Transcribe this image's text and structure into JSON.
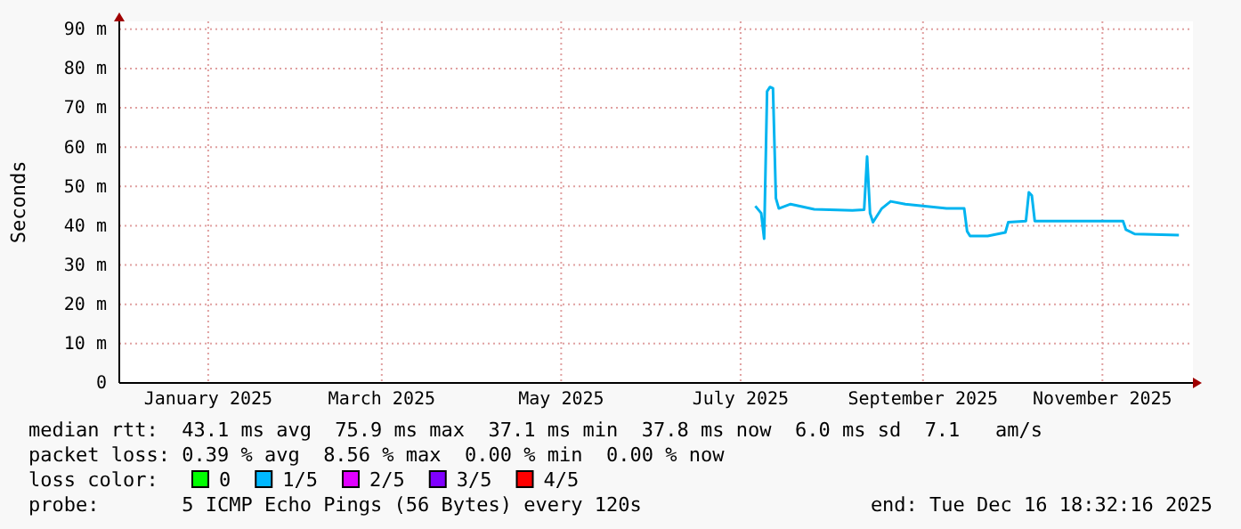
{
  "chart_data": {
    "type": "line",
    "ylabel": "Seconds",
    "xlim": [
      "2024-12-16T18:32",
      "2025-12-16T18:32"
    ],
    "xticks": [
      {
        "value": "2025-01-16",
        "label": "January 2025"
      },
      {
        "value": "2025-03-16",
        "label": "March 2025"
      },
      {
        "value": "2025-05-16",
        "label": "May 2025"
      },
      {
        "value": "2025-07-16",
        "label": "July 2025"
      },
      {
        "value": "2025-09-16",
        "label": "September 2025"
      },
      {
        "value": "2025-11-16",
        "label": "November 2025"
      }
    ],
    "ylim": [
      0,
      92
    ],
    "yticks": [
      0,
      {
        "value": 10,
        "label": "10 m"
      },
      {
        "value": 20,
        "label": "20 m"
      },
      {
        "value": 30,
        "label": "30 m"
      },
      {
        "value": 40,
        "label": "40 m"
      },
      {
        "value": 50,
        "label": "50 m"
      },
      {
        "value": 60,
        "label": "60 m"
      },
      {
        "value": 70,
        "label": "70 m"
      },
      {
        "value": 80,
        "label": "80 m"
      },
      {
        "value": 90,
        "label": "90 m"
      }
    ],
    "grid": true,
    "marker": "none",
    "line_style": "solid",
    "series": [
      {
        "color": "#00b4f0",
        "x": [
          "2025-07-21",
          "2025-07-23",
          "2025-07-24",
          "2025-07-25",
          "2025-07-26",
          "2025-07-27",
          "2025-07-28",
          "2025-07-29",
          "2025-08-02",
          "2025-08-10",
          "2025-08-23",
          "2025-08-27",
          "2025-08-28",
          "2025-08-29",
          "2025-08-30",
          "2025-09-02",
          "2025-09-05",
          "2025-09-10",
          "2025-09-24",
          "2025-09-30",
          "2025-10-01",
          "2025-10-02",
          "2025-10-08",
          "2025-10-14",
          "2025-10-15",
          "2025-10-21",
          "2025-10-22",
          "2025-10-23",
          "2025-10-24",
          "2025-11-03",
          "2025-11-23",
          "2025-11-24",
          "2025-11-27",
          "2025-12-12"
        ],
        "values": [
          45,
          43.2,
          36.7,
          74.2,
          75.3,
          75,
          47,
          44.4,
          45.5,
          44.2,
          43.9,
          44.1,
          57.6,
          43.2,
          40.9,
          44.4,
          46.2,
          45.5,
          44.4,
          44.4,
          38.6,
          37.4,
          37.4,
          38.3,
          40.9,
          41.2,
          48.5,
          47.7,
          41.2,
          41.2,
          41.2,
          39,
          37.9,
          37.6
        ]
      }
    ],
    "annotations": [
      "median rtt:  43.1 ms avg  75.9 ms max  37.1 ms min  37.8 ms now  6.0 ms sd  7.1   am/s",
      "packet loss: 0.39 % avg  8.56 % max  0.00 % min  0.00 % now",
      "loss color:",
      "0",
      "1/5",
      "2/5",
      "3/5",
      "4/5",
      "probe:       5 ICMP Echo Pings (56 Bytes) every 120s",
      "end: Tue Dec 16 18:32:16 2025"
    ]
  }
}
